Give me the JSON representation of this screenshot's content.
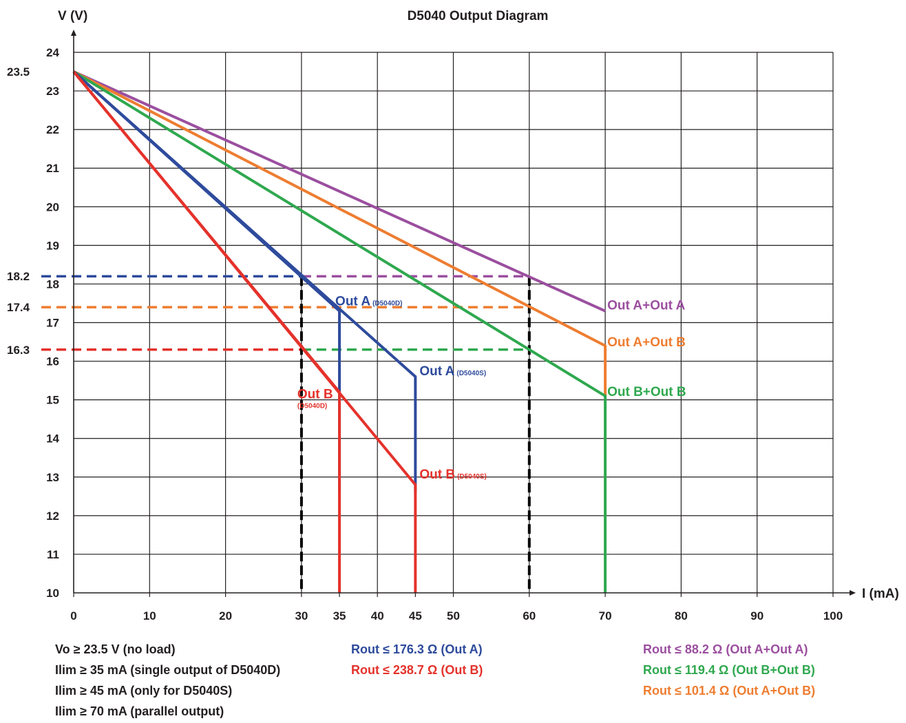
{
  "chart_data": {
    "type": "line",
    "title": "D5040 Output Diagram",
    "xlabel": "I (mA)",
    "ylabel": "V (V)",
    "xlim": [
      0,
      100
    ],
    "ylim": [
      10,
      24
    ],
    "x_ticks": [
      "0",
      "10",
      "20",
      "30",
      "35",
      "40",
      "45",
      "50",
      "60",
      "70",
      "80",
      "90",
      "100"
    ],
    "y_ticks": [
      "10",
      "11",
      "12",
      "13",
      "14",
      "15",
      "16",
      "17",
      "18",
      "19",
      "20",
      "21",
      "22",
      "23",
      "24"
    ],
    "extra_y_labels": [
      "23.5",
      "18.2",
      "17.4",
      "16.3"
    ],
    "grid": true,
    "series": [
      {
        "name": "Out A+Out A",
        "sub": "",
        "color": "#9b4f9f",
        "points": [
          [
            0,
            23.5
          ],
          [
            70,
            17.3
          ]
        ],
        "label_at": [
          70,
          17.3
        ]
      },
      {
        "name": "Out A+Out B",
        "sub": "",
        "color": "#ee7d31",
        "points": [
          [
            0,
            23.5
          ],
          [
            70,
            16.4
          ],
          [
            70,
            15.1
          ]
        ],
        "label_at": [
          70,
          16.4
        ]
      },
      {
        "name": "Out B+Out B",
        "sub": "",
        "color": "#2fa84f",
        "points": [
          [
            0,
            23.5
          ],
          [
            70,
            15.1
          ],
          [
            70,
            10
          ]
        ],
        "label_at": [
          70,
          15.1
        ]
      },
      {
        "name": "Out A",
        "sub": "(D5040D)",
        "color": "#2e4b9c",
        "points": [
          [
            0,
            23.5
          ],
          [
            35,
            17.3
          ],
          [
            35,
            12.6
          ]
        ],
        "label_at": [
          35,
          17.3
        ]
      },
      {
        "name": "Out A",
        "sub": "(D5040S)",
        "color": "#2e4b9c",
        "points": [
          [
            0,
            23.5
          ],
          [
            45,
            15.6
          ],
          [
            45,
            12.6
          ]
        ],
        "label_at": [
          45,
          15.6
        ]
      },
      {
        "name": "Out B",
        "sub": "(D5040D)",
        "color": "#e4322b",
        "points": [
          [
            0,
            23.5
          ],
          [
            35,
            15.2
          ],
          [
            35,
            10
          ]
        ],
        "label_at": [
          35,
          15.2
        ]
      },
      {
        "name": "Out B",
        "sub": "(D5040S)",
        "color": "#e4322b",
        "points": [
          [
            0,
            23.5
          ],
          [
            45,
            12.8
          ],
          [
            45,
            10
          ]
        ],
        "label_at": [
          45,
          12.8
        ]
      }
    ],
    "reference_lines": {
      "horizontal": [
        {
          "y": 18.2,
          "x_to": 60,
          "colors": [
            "#2e4b9c",
            "#9b4f9f"
          ],
          "split_x": 30
        },
        {
          "y": 17.4,
          "x_to": 60,
          "colors": [
            "#ee7d31"
          ],
          "split_x": 30
        },
        {
          "y": 16.3,
          "x_to": 60,
          "colors": [
            "#e4322b",
            "#2fa84f"
          ],
          "split_x": 30
        }
      ],
      "vertical": [
        {
          "x": 30,
          "color": "#000000"
        },
        {
          "x": 60,
          "color": "#000000"
        }
      ]
    }
  },
  "notes": {
    "left": [
      "Vo ≥ 23.5 V (no load)",
      "Ilim ≥ 35 mA (single output of D5040D)",
      "Ilim ≥ 45 mA (only for D5040S)",
      "Ilim ≥ 70 mA (parallel output)"
    ],
    "middle": [
      {
        "text": "Rout ≤ 176.3 Ω (Out A)",
        "color": "#2e4b9c"
      },
      {
        "text": "Rout ≤ 238.7 Ω (Out B)",
        "color": "#e4322b"
      }
    ],
    "right": [
      {
        "text": "Rout ≤ 88.2 Ω (Out A+Out A)",
        "color": "#9b4f9f"
      },
      {
        "text": "Rout ≤ 119.4 Ω (Out B+Out B)",
        "color": "#2fa84f"
      },
      {
        "text": "Rout ≤ 101.4 Ω (Out A+Out B)",
        "color": "#ee7d31"
      }
    ]
  }
}
